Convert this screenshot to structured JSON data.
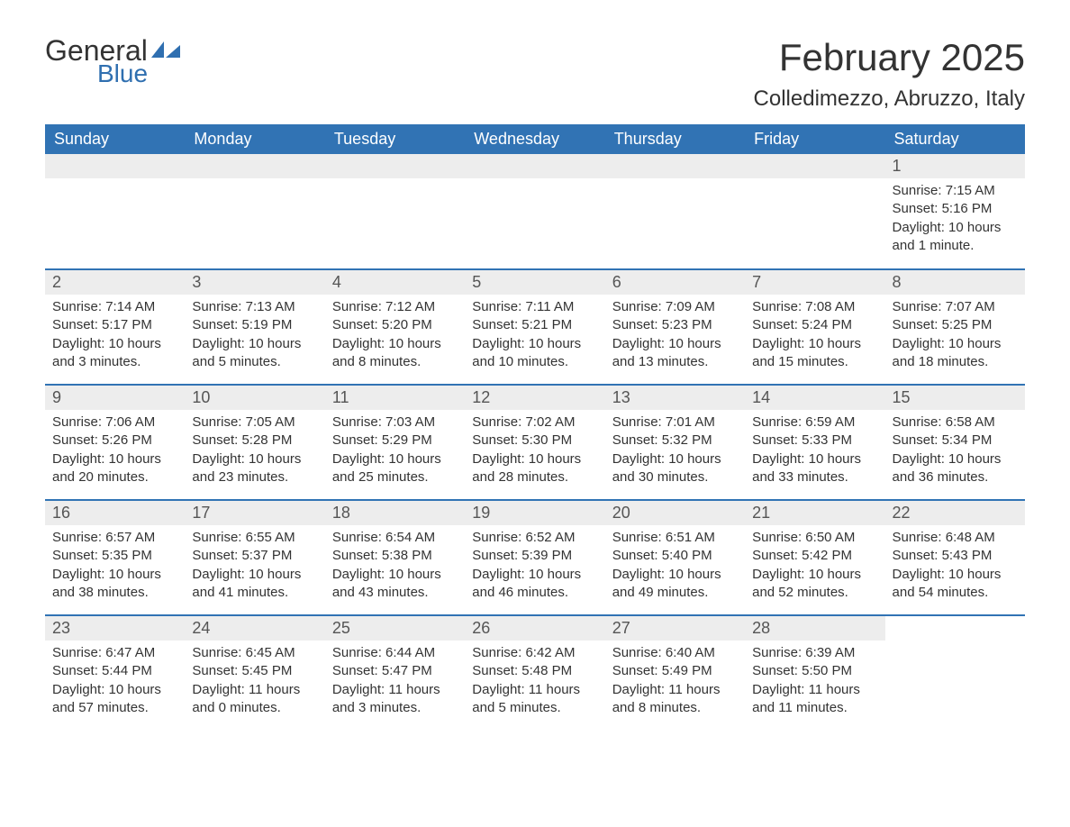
{
  "logo": {
    "general": "General",
    "blue": "Blue"
  },
  "title": "February 2025",
  "location": "Colledimezzo, Abruzzo, Italy",
  "colors": {
    "header_bg": "#3173b4",
    "header_text": "#ffffff",
    "daynum_bg": "#ededed",
    "accent_blue": "#2f6fb0",
    "text": "#333333",
    "border": "#3173b4"
  },
  "day_headers": [
    "Sunday",
    "Monday",
    "Tuesday",
    "Wednesday",
    "Thursday",
    "Friday",
    "Saturday"
  ],
  "weeks": [
    [
      null,
      null,
      null,
      null,
      null,
      null,
      {
        "n": "1",
        "sunrise": "7:15 AM",
        "sunset": "5:16 PM",
        "daylight": "10 hours and 1 minute."
      }
    ],
    [
      {
        "n": "2",
        "sunrise": "7:14 AM",
        "sunset": "5:17 PM",
        "daylight": "10 hours and 3 minutes."
      },
      {
        "n": "3",
        "sunrise": "7:13 AM",
        "sunset": "5:19 PM",
        "daylight": "10 hours and 5 minutes."
      },
      {
        "n": "4",
        "sunrise": "7:12 AM",
        "sunset": "5:20 PM",
        "daylight": "10 hours and 8 minutes."
      },
      {
        "n": "5",
        "sunrise": "7:11 AM",
        "sunset": "5:21 PM",
        "daylight": "10 hours and 10 minutes."
      },
      {
        "n": "6",
        "sunrise": "7:09 AM",
        "sunset": "5:23 PM",
        "daylight": "10 hours and 13 minutes."
      },
      {
        "n": "7",
        "sunrise": "7:08 AM",
        "sunset": "5:24 PM",
        "daylight": "10 hours and 15 minutes."
      },
      {
        "n": "8",
        "sunrise": "7:07 AM",
        "sunset": "5:25 PM",
        "daylight": "10 hours and 18 minutes."
      }
    ],
    [
      {
        "n": "9",
        "sunrise": "7:06 AM",
        "sunset": "5:26 PM",
        "daylight": "10 hours and 20 minutes."
      },
      {
        "n": "10",
        "sunrise": "7:05 AM",
        "sunset": "5:28 PM",
        "daylight": "10 hours and 23 minutes."
      },
      {
        "n": "11",
        "sunrise": "7:03 AM",
        "sunset": "5:29 PM",
        "daylight": "10 hours and 25 minutes."
      },
      {
        "n": "12",
        "sunrise": "7:02 AM",
        "sunset": "5:30 PM",
        "daylight": "10 hours and 28 minutes."
      },
      {
        "n": "13",
        "sunrise": "7:01 AM",
        "sunset": "5:32 PM",
        "daylight": "10 hours and 30 minutes."
      },
      {
        "n": "14",
        "sunrise": "6:59 AM",
        "sunset": "5:33 PM",
        "daylight": "10 hours and 33 minutes."
      },
      {
        "n": "15",
        "sunrise": "6:58 AM",
        "sunset": "5:34 PM",
        "daylight": "10 hours and 36 minutes."
      }
    ],
    [
      {
        "n": "16",
        "sunrise": "6:57 AM",
        "sunset": "5:35 PM",
        "daylight": "10 hours and 38 minutes."
      },
      {
        "n": "17",
        "sunrise": "6:55 AM",
        "sunset": "5:37 PM",
        "daylight": "10 hours and 41 minutes."
      },
      {
        "n": "18",
        "sunrise": "6:54 AM",
        "sunset": "5:38 PM",
        "daylight": "10 hours and 43 minutes."
      },
      {
        "n": "19",
        "sunrise": "6:52 AM",
        "sunset": "5:39 PM",
        "daylight": "10 hours and 46 minutes."
      },
      {
        "n": "20",
        "sunrise": "6:51 AM",
        "sunset": "5:40 PM",
        "daylight": "10 hours and 49 minutes."
      },
      {
        "n": "21",
        "sunrise": "6:50 AM",
        "sunset": "5:42 PM",
        "daylight": "10 hours and 52 minutes."
      },
      {
        "n": "22",
        "sunrise": "6:48 AM",
        "sunset": "5:43 PM",
        "daylight": "10 hours and 54 minutes."
      }
    ],
    [
      {
        "n": "23",
        "sunrise": "6:47 AM",
        "sunset": "5:44 PM",
        "daylight": "10 hours and 57 minutes."
      },
      {
        "n": "24",
        "sunrise": "6:45 AM",
        "sunset": "5:45 PM",
        "daylight": "11 hours and 0 minutes."
      },
      {
        "n": "25",
        "sunrise": "6:44 AM",
        "sunset": "5:47 PM",
        "daylight": "11 hours and 3 minutes."
      },
      {
        "n": "26",
        "sunrise": "6:42 AM",
        "sunset": "5:48 PM",
        "daylight": "11 hours and 5 minutes."
      },
      {
        "n": "27",
        "sunrise": "6:40 AM",
        "sunset": "5:49 PM",
        "daylight": "11 hours and 8 minutes."
      },
      {
        "n": "28",
        "sunrise": "6:39 AM",
        "sunset": "5:50 PM",
        "daylight": "11 hours and 11 minutes."
      },
      null
    ]
  ],
  "labels": {
    "sunrise_prefix": "Sunrise: ",
    "sunset_prefix": "Sunset: ",
    "daylight_prefix": "Daylight: "
  }
}
